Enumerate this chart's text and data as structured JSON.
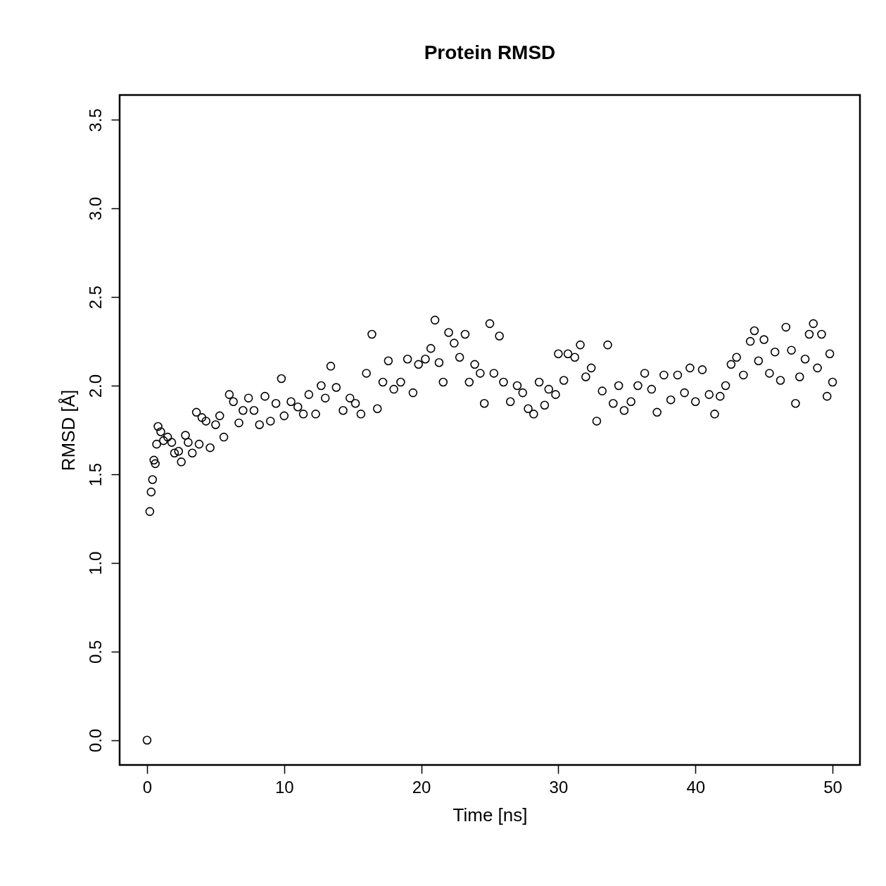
{
  "chart_data": {
    "type": "scatter",
    "title": "Protein RMSD",
    "xlabel": "Time [ns]",
    "ylabel": "RMSD [Å]",
    "marker": "circle",
    "color": "#000000",
    "xlim": [
      -2,
      52
    ],
    "ylim": [
      -0.14,
      3.64
    ],
    "xticks": [
      0,
      10,
      20,
      30,
      40,
      50
    ],
    "yticks": [
      {
        "value": 0,
        "label": "0.0"
      },
      {
        "value": 0.5,
        "label": "0.5"
      },
      {
        "value": 1,
        "label": "1.0"
      },
      {
        "value": 1.5,
        "label": "1.5"
      },
      {
        "value": 2,
        "label": "2.0"
      },
      {
        "value": 2.5,
        "label": "2.5"
      },
      {
        "value": 3,
        "label": "3.0"
      },
      {
        "value": 3.5,
        "label": "3.5"
      }
    ],
    "x": [
      0,
      0.2,
      0.3,
      0.4,
      0.5,
      0.6,
      0.7,
      0.8,
      1.0,
      1.2,
      1.5,
      1.8,
      2.0,
      2.3,
      2.5,
      2.8,
      3.0,
      3.3,
      3.6,
      3.8,
      4.0,
      4.3,
      4.6,
      5.0,
      5.3,
      5.6,
      6.0,
      6.3,
      6.7,
      7.0,
      7.4,
      7.8,
      8.2,
      8.6,
      9.0,
      9.4,
      9.8,
      10.0,
      10.5,
      11.0,
      11.4,
      11.8,
      12.3,
      12.7,
      13.0,
      13.4,
      13.8,
      14.3,
      14.8,
      15.2,
      15.6,
      16.0,
      16.4,
      16.8,
      17.2,
      17.6,
      18.0,
      18.5,
      19.0,
      19.4,
      19.8,
      20.3,
      20.7,
      21.0,
      21.3,
      21.6,
      22.0,
      22.4,
      22.8,
      23.2,
      23.5,
      23.9,
      24.3,
      24.6,
      25.0,
      25.3,
      25.7,
      26.0,
      26.5,
      27.0,
      27.4,
      27.8,
      28.2,
      28.6,
      29.0,
      29.3,
      29.8,
      30.0,
      30.4,
      30.7,
      31.2,
      31.6,
      32.0,
      32.4,
      32.8,
      33.2,
      33.6,
      34.0,
      34.4,
      34.8,
      35.3,
      35.8,
      36.3,
      36.8,
      37.2,
      37.7,
      38.2,
      38.7,
      39.2,
      39.6,
      40.0,
      40.5,
      41.0,
      41.4,
      41.8,
      42.2,
      42.6,
      43.0,
      43.5,
      44.0,
      44.3,
      44.6,
      45.0,
      45.4,
      45.8,
      46.2,
      46.6,
      47.0,
      47.3,
      47.6,
      48.0,
      48.3,
      48.6,
      48.9,
      49.2,
      49.6,
      49.8,
      50.0
    ],
    "values": [
      0.0,
      1.29,
      1.4,
      1.47,
      1.58,
      1.56,
      1.67,
      1.77,
      1.74,
      1.69,
      1.71,
      1.68,
      1.62,
      1.63,
      1.57,
      1.72,
      1.68,
      1.62,
      1.85,
      1.67,
      1.82,
      1.8,
      1.65,
      1.78,
      1.83,
      1.71,
      1.95,
      1.91,
      1.79,
      1.86,
      1.93,
      1.86,
      1.78,
      1.94,
      1.8,
      1.9,
      2.04,
      1.83,
      1.91,
      1.88,
      1.84,
      1.95,
      1.84,
      2.0,
      1.93,
      2.11,
      1.99,
      1.86,
      1.93,
      1.9,
      1.84,
      2.07,
      2.29,
      1.87,
      2.02,
      2.14,
      1.98,
      2.02,
      2.15,
      1.96,
      2.12,
      2.15,
      2.21,
      2.37,
      2.13,
      2.02,
      2.3,
      2.24,
      2.16,
      2.29,
      2.02,
      2.12,
      2.07,
      1.9,
      2.35,
      2.07,
      2.28,
      2.02,
      1.91,
      2.0,
      1.96,
      1.87,
      1.84,
      2.02,
      1.89,
      1.98,
      1.95,
      2.18,
      2.03,
      2.18,
      2.16,
      2.23,
      2.05,
      2.1,
      1.8,
      1.97,
      2.23,
      1.9,
      2.0,
      1.86,
      1.91,
      2.0,
      2.07,
      1.98,
      1.85,
      2.06,
      1.92,
      2.06,
      1.96,
      2.1,
      1.91,
      2.09,
      1.95,
      1.84,
      1.94,
      2.0,
      2.12,
      2.16,
      2.06,
      2.25,
      2.31,
      2.14,
      2.26,
      2.07,
      2.19,
      2.03,
      2.33,
      2.2,
      1.9,
      2.05,
      2.15,
      2.29,
      2.35,
      2.1,
      2.29,
      1.94,
      2.18,
      2.02
    ]
  }
}
